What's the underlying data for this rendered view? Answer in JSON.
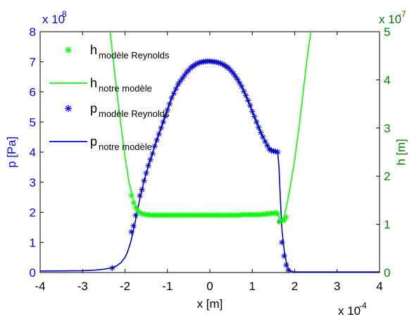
{
  "chart_data": {
    "type": "line",
    "xlabel": "x [m]",
    "x_exponent": "x 10",
    "x_exponent_power": "-4",
    "x_ticks": [
      "-4",
      "-3",
      "-2",
      "-1",
      "0",
      "1",
      "2",
      "3",
      "4"
    ],
    "xlim": [
      -4,
      4
    ],
    "y_left": {
      "label": "p [Pa]",
      "exponent": "x 10",
      "exponent_power": "8",
      "ticks": [
        "0",
        "1",
        "2",
        "3",
        "4",
        "5",
        "6",
        "7",
        "8"
      ],
      "lim": [
        0,
        8
      ],
      "color": "#0000ff"
    },
    "y_right": {
      "label": "h [m]",
      "exponent": "x 10",
      "exponent_power": "-7",
      "ticks": [
        "0",
        "1",
        "2",
        "3",
        "4",
        "5"
      ],
      "lim": [
        0,
        5
      ],
      "color": "#008000"
    },
    "legend": {
      "placement": "top-left",
      "entries": [
        {
          "base": "h",
          "sub": "modèle Reynolds",
          "style": "marker",
          "color": "#00ff00"
        },
        {
          "base": "h",
          "sub": "notre modèle",
          "style": "line",
          "color": "#00ff00"
        },
        {
          "base": "p",
          "sub": "modèle Reynolds",
          "style": "marker",
          "color": "#0000ff"
        },
        {
          "base": "p",
          "sub": "notre modèle",
          "style": "line",
          "color": "#0000ff"
        }
      ]
    },
    "series": [
      {
        "id": "p_line",
        "axis": "left",
        "style": "line",
        "color": "#0000cc",
        "x": [
          -4,
          -3.5,
          -3,
          -2.7,
          -2.5,
          -2.3,
          -2.2,
          -2.1,
          -2.0,
          -1.95,
          -1.9,
          -1.85,
          -1.8,
          -1.75,
          -1.7,
          -1.65,
          -1.6,
          -1.5,
          -1.4,
          -1.3,
          -1.2,
          -1.1,
          -1.0,
          -0.9,
          -0.8,
          -0.7,
          -0.6,
          -0.5,
          -0.4,
          -0.3,
          -0.2,
          -0.1,
          0,
          0.1,
          0.2,
          0.3,
          0.4,
          0.5,
          0.6,
          0.7,
          0.8,
          0.9,
          1.0,
          1.1,
          1.2,
          1.3,
          1.4,
          1.5,
          1.55,
          1.6,
          1.63,
          1.66,
          1.7,
          1.75,
          1.8,
          1.85,
          1.9,
          2.0,
          2.2,
          2.5,
          3,
          3.5,
          4
        ],
        "y": [
          0.05,
          0.055,
          0.06,
          0.08,
          0.11,
          0.16,
          0.22,
          0.32,
          0.5,
          0.65,
          0.85,
          1.1,
          1.4,
          1.75,
          2.1,
          2.45,
          2.75,
          3.3,
          3.75,
          4.2,
          4.6,
          5.0,
          5.4,
          5.8,
          6.1,
          6.35,
          6.55,
          6.72,
          6.85,
          6.94,
          6.99,
          7.02,
          7.03,
          7.02,
          6.99,
          6.93,
          6.84,
          6.72,
          6.55,
          6.33,
          6.05,
          5.7,
          5.35,
          5.0,
          4.65,
          4.4,
          4.15,
          4.05,
          4.02,
          3.98,
          3.5,
          2.5,
          1.4,
          0.75,
          0.35,
          0.12,
          0.05,
          0.02,
          0.02,
          0.02,
          0.02,
          0.02,
          0.02
        ]
      },
      {
        "id": "p_markers",
        "axis": "left",
        "style": "marker",
        "color": "#0000cc",
        "x": [
          -2.3,
          -1.85,
          -1.8,
          -1.75,
          -1.65,
          -1.6,
          -1.55,
          -1.5,
          -1.45,
          -1.4,
          -1.35,
          -1.3,
          -1.25,
          -1.2,
          -1.15,
          -1.1,
          -1.05,
          -1.0,
          -0.95,
          -0.9,
          -0.85,
          -0.8,
          -0.75,
          -0.7,
          -0.65,
          -0.6,
          -0.55,
          -0.5,
          -0.45,
          -0.4,
          -0.35,
          -0.3,
          -0.25,
          -0.2,
          -0.15,
          -0.1,
          -0.05,
          0,
          0.05,
          0.1,
          0.15,
          0.2,
          0.25,
          0.3,
          0.35,
          0.4,
          0.45,
          0.5,
          0.55,
          0.6,
          0.65,
          0.7,
          0.75,
          0.8,
          0.85,
          0.9,
          0.95,
          1.0,
          1.05,
          1.1,
          1.15,
          1.2,
          1.25,
          1.3,
          1.35,
          1.4,
          1.45,
          1.5,
          1.55,
          1.6,
          1.65,
          1.7,
          1.75,
          1.8,
          1.85
        ],
        "y": [
          0.15,
          1.35,
          1.55,
          1.9,
          2.55,
          2.75,
          3.05,
          3.3,
          3.55,
          3.75,
          3.95,
          4.2,
          4.4,
          4.6,
          4.8,
          5.0,
          5.2,
          5.4,
          5.6,
          5.8,
          5.95,
          6.1,
          6.25,
          6.35,
          6.45,
          6.55,
          6.65,
          6.72,
          6.8,
          6.85,
          6.9,
          6.94,
          6.97,
          6.99,
          7.0,
          7.01,
          7.02,
          7.02,
          7.01,
          7.0,
          6.99,
          6.97,
          6.95,
          6.92,
          6.88,
          6.83,
          6.78,
          6.7,
          6.62,
          6.52,
          6.42,
          6.3,
          6.18,
          6.02,
          5.88,
          5.72,
          5.55,
          5.35,
          5.18,
          5.0,
          4.82,
          4.65,
          4.5,
          4.35,
          4.22,
          4.1,
          4.05,
          4.03,
          4.02,
          4.0,
          1.7,
          1.0,
          0.55,
          0.25,
          0.08
        ]
      },
      {
        "id": "h_line",
        "axis": "right",
        "style": "line",
        "color": "#00ff00",
        "x": [
          -2.35,
          -2.3,
          -2.25,
          -2.2,
          -2.1,
          -2.0,
          -1.9,
          -1.8,
          -1.7,
          -1.6,
          -1.5,
          -1.4,
          -1.2,
          -1.0,
          -0.5,
          0,
          0.5,
          1.0,
          1.3,
          1.5,
          1.6,
          1.65,
          1.7,
          1.75,
          1.8,
          1.9,
          2.0,
          2.1,
          2.2,
          2.3,
          2.38
        ],
        "y": [
          5.0,
          4.6,
          4.2,
          3.8,
          3.1,
          2.4,
          1.85,
          1.5,
          1.3,
          1.22,
          1.2,
          1.19,
          1.19,
          1.19,
          1.19,
          1.19,
          1.19,
          1.2,
          1.2,
          1.22,
          1.2,
          1.12,
          1.07,
          1.15,
          1.35,
          1.8,
          2.35,
          3.0,
          3.75,
          4.5,
          5.0
        ]
      },
      {
        "id": "h_markers",
        "axis": "right",
        "style": "marker",
        "color": "#00ff00",
        "x": [
          -1.85,
          -1.8,
          -1.75,
          -1.7,
          -1.65,
          -1.6,
          -1.55,
          -1.5,
          -1.45,
          -1.4,
          -1.35,
          -1.3,
          -1.25,
          -1.2,
          -1.15,
          -1.1,
          -1.05,
          -1.0,
          -0.95,
          -0.9,
          -0.85,
          -0.8,
          -0.75,
          -0.7,
          -0.65,
          -0.6,
          -0.55,
          -0.5,
          -0.45,
          -0.4,
          -0.35,
          -0.3,
          -0.25,
          -0.2,
          -0.15,
          -0.1,
          -0.05,
          0,
          0.05,
          0.1,
          0.15,
          0.2,
          0.25,
          0.3,
          0.35,
          0.4,
          0.45,
          0.5,
          0.55,
          0.6,
          0.65,
          0.7,
          0.75,
          0.8,
          0.85,
          0.9,
          0.95,
          1.0,
          1.05,
          1.1,
          1.15,
          1.2,
          1.25,
          1.3,
          1.35,
          1.4,
          1.45,
          1.5,
          1.55,
          1.6,
          1.65,
          1.7,
          1.75,
          1.8
        ],
        "y": [
          1.6,
          1.45,
          1.35,
          1.28,
          1.24,
          1.22,
          1.21,
          1.2,
          1.2,
          1.19,
          1.19,
          1.19,
          1.19,
          1.19,
          1.19,
          1.19,
          1.19,
          1.19,
          1.19,
          1.19,
          1.19,
          1.19,
          1.19,
          1.19,
          1.19,
          1.19,
          1.19,
          1.19,
          1.19,
          1.19,
          1.19,
          1.19,
          1.19,
          1.19,
          1.19,
          1.19,
          1.19,
          1.19,
          1.19,
          1.19,
          1.19,
          1.19,
          1.19,
          1.19,
          1.19,
          1.19,
          1.19,
          1.19,
          1.19,
          1.19,
          1.19,
          1.19,
          1.2,
          1.2,
          1.2,
          1.2,
          1.2,
          1.2,
          1.2,
          1.2,
          1.2,
          1.2,
          1.21,
          1.21,
          1.22,
          1.22,
          1.23,
          1.23,
          1.24,
          1.22,
          1.05,
          1.1,
          1.08,
          1.15
        ]
      }
    ]
  }
}
